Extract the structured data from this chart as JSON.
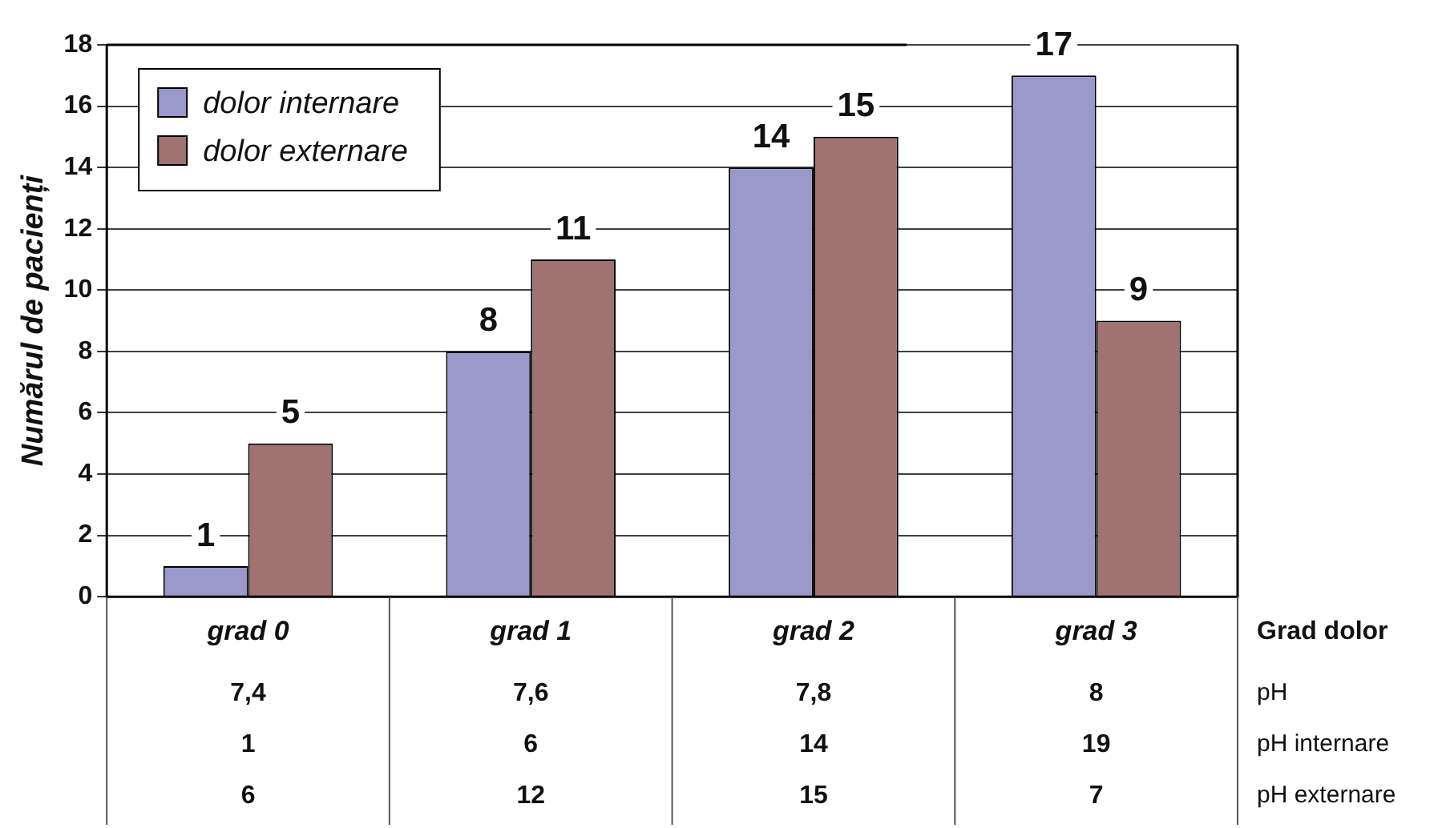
{
  "chart_data": {
    "type": "bar",
    "ylabel": "Numărul de pacienți",
    "xlabel": "Grad dolor",
    "categories": [
      "grad 0",
      "grad 1",
      "grad 2",
      "grad 3"
    ],
    "series": [
      {
        "name": "dolor internare",
        "color": "#9b98cc",
        "values": [
          1,
          8,
          14,
          17
        ]
      },
      {
        "name": "dolor externare",
        "color": "#a07272",
        "values": [
          5,
          11,
          15,
          9
        ]
      }
    ],
    "ylim": [
      0,
      18
    ],
    "yticks": [
      0,
      2,
      4,
      6,
      8,
      10,
      12,
      14,
      16,
      18
    ],
    "grid": "y",
    "legend": "top left",
    "data_labels": true,
    "annotations": [
      "pH",
      "7,4",
      "7,6",
      "7,8",
      "8",
      "pH internare",
      "1",
      "6",
      "14",
      "19",
      "pH externare",
      "6",
      "12",
      "15",
      "7"
    ]
  }
}
